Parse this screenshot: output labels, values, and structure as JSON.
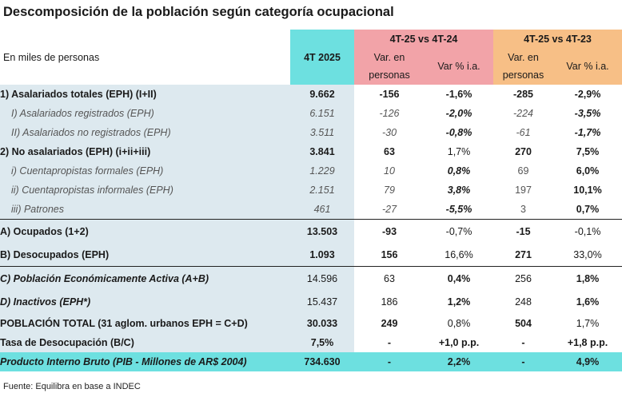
{
  "title": "Descomposición de la población según categoría ocupacional",
  "units": "En miles de personas",
  "header": {
    "col_4t": "4T 2025",
    "group1": "4T-25 vs 4T-24",
    "group2": "4T-25 vs 4T-23",
    "var_personas": "Var. en personas",
    "var_pct": "Var % i.a."
  },
  "rows": [
    {
      "label": "1) Asalariados totales (EPH) (I+II)",
      "v": "9.662",
      "d1": "-156",
      "p1": "-1,6%",
      "d2": "-285",
      "p2": "-2,9%"
    },
    {
      "label": "I) Asalariados registrados (EPH)",
      "v": "6.151",
      "d1": "-126",
      "p1": "-2,0%",
      "d2": "-224",
      "p2": "-3,5%"
    },
    {
      "label": "II) Asalariados no registrados (EPH)",
      "v": "3.511",
      "d1": "-30",
      "p1": "-0,8%",
      "d2": "-61",
      "p2": "-1,7%"
    },
    {
      "label": "2) No asalariados (EPH) (i+ii+iii)",
      "v": "3.841",
      "d1": "63",
      "p1": "1,7%",
      "d2": "270",
      "p2": "7,5%"
    },
    {
      "label": "i) Cuentapropistas formales (EPH)",
      "v": "1.229",
      "d1": "10",
      "p1": "0,8%",
      "d2": "69",
      "p2": "6,0%"
    },
    {
      "label": "ii) Cuentapropistas informales (EPH)",
      "v": "2.151",
      "d1": "79",
      "p1": "3,8%",
      "d2": "197",
      "p2": "10,1%"
    },
    {
      "label": "iii) Patrones",
      "v": "461",
      "d1": "-27",
      "p1": "-5,5%",
      "d2": "3",
      "p2": "0,7%"
    },
    {
      "label": "A) Ocupados (1+2)",
      "v": "13.503",
      "d1": "-93",
      "p1": "-0,7%",
      "d2": "-15",
      "p2": "-0,1%"
    },
    {
      "label": "B) Desocupados (EPH)",
      "v": "1.093",
      "d1": "156",
      "p1": "16,6%",
      "d2": "271",
      "p2": "33,0%"
    },
    {
      "label": "C) Población Económicamente Activa (A+B)",
      "v": "14.596",
      "d1": "63",
      "p1": "0,4%",
      "d2": "256",
      "p2": "1,8%"
    },
    {
      "label": "D) Inactivos (EPH*)",
      "v": "15.437",
      "d1": "186",
      "p1": "1,2%",
      "d2": "248",
      "p2": "1,6%"
    },
    {
      "label": "POBLACIÓN TOTAL (31 aglom. urbanos EPH = C+D)",
      "v": "30.033",
      "d1": "249",
      "p1": "0,8%",
      "d2": "504",
      "p2": "1,7%"
    },
    {
      "label": "Tasa de Desocupación (B/C)",
      "v": "7,5%",
      "d1": "-",
      "p1": "+1,0 p.p.",
      "d2": "-",
      "p2": "+1,8 p.p."
    },
    {
      "label": "Producto Interno Bruto (PIB - Millones de AR$ 2004)",
      "v": "734.630",
      "d1": "-",
      "p1": "2,2%",
      "d2": "-",
      "p2": "4,9%"
    }
  ],
  "footer": "Fuente: Equilibra en base a INDEC"
}
